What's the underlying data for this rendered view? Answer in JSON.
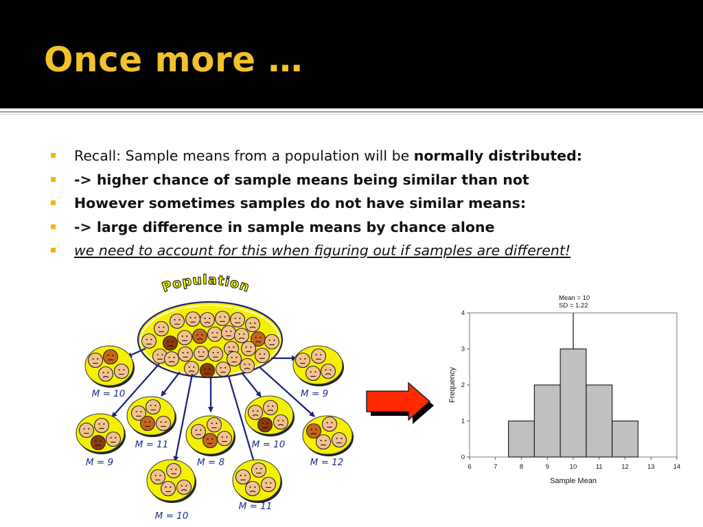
{
  "slide": {
    "title": "Once more …"
  },
  "bullets": [
    {
      "text": "Recall: Sample means from a population will be ",
      "bold": "normally distributed:"
    },
    {
      "bold": "-> higher chance of sample means being similar than not"
    },
    {
      "bold": "However sometimes samples do not have similar means:"
    },
    {
      "bold": "-> large difference in sample means by chance alone"
    },
    {
      "italic": "we need to account for this when figuring out if samples are different!"
    }
  ],
  "diagram": {
    "population_label": "Population",
    "samples": [
      "M = 10",
      "M = 9",
      "M = 11",
      "M = 9",
      "M = 8",
      "M = 10",
      "M = 12",
      "M = 10",
      "M = 11"
    ]
  },
  "colors": {
    "title": "#f2c22b",
    "bullet": "#f2b600",
    "sample_fill": "#f4f000",
    "arrow_fill": "#ff2a00"
  },
  "chart_data": {
    "type": "bar",
    "categories": [
      8,
      9,
      10,
      11,
      12
    ],
    "values": [
      1,
      2,
      3,
      2,
      1
    ],
    "x_ticks": [
      6,
      7,
      8,
      9,
      10,
      11,
      12,
      13,
      14
    ],
    "y_ticks": [
      0,
      1,
      2,
      3,
      4
    ],
    "xlim": [
      6,
      14
    ],
    "ylim": [
      0,
      4
    ],
    "xlabel": "Sample Mean",
    "ylabel": "Frequency",
    "annotations": [
      "Mean = 10",
      "SD = 1.22"
    ],
    "mean_line": 10,
    "grid": false,
    "bar_color": "#c0c0c0"
  }
}
